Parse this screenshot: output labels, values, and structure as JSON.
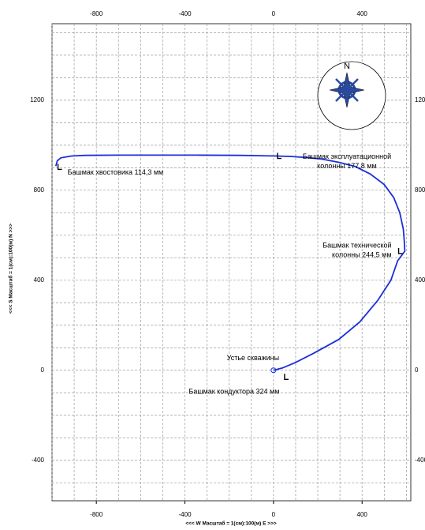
{
  "chart_data": {
    "type": "line",
    "x_label": "<<< W Масштаб = 1(см):100(м) E   >>>",
    "y_label": "<<< S  Масштаб = 1(см):100(м) N >>>",
    "x": [
      0,
      40,
      100,
      180,
      295,
      390,
      472,
      530,
      561,
      593,
      590,
      586,
      570,
      543,
      500,
      437,
      370,
      295,
      220,
      153,
      80,
      11,
      -150,
      -344,
      -520,
      -699,
      -850,
      -912,
      -960,
      -976,
      -983
    ],
    "values": [
      0,
      10,
      35,
      75,
      137,
      215,
      312,
      400,
      487,
      529,
      580,
      627,
      700,
      767,
      825,
      872,
      905,
      924,
      938,
      945,
      950,
      952,
      955,
      956,
      956,
      956,
      955,
      952,
      944,
      931,
      907
    ],
    "color": "#1a2fd8",
    "xlim": [
      -1000,
      620
    ],
    "xticks": [
      -800,
      -400,
      0,
      400
    ],
    "ylim": [
      -580,
      1540
    ],
    "yticks": [
      -400,
      0,
      400,
      800,
      1200
    ],
    "grid": true,
    "compass_label": "N",
    "annotations": [
      {
        "lines": [
          "Устье скважины"
        ],
        "x": 0,
        "y": 0
      },
      {
        "lines": [
          "Башмак кондуктора 324 мм"
        ],
        "x": 50,
        "y": -30
      },
      {
        "lines": [
          "Башмак технической",
          "колонны 244,5 мм"
        ],
        "x": 565,
        "y": 529
      },
      {
        "lines": [
          "Башмак эксплуатационной",
          "колонны 177,8 мм"
        ],
        "x": 18,
        "y": 952
      },
      {
        "lines": [
          "Башмак хвостовика 114,3 мм"
        ],
        "x": -973,
        "y": 903
      }
    ]
  }
}
